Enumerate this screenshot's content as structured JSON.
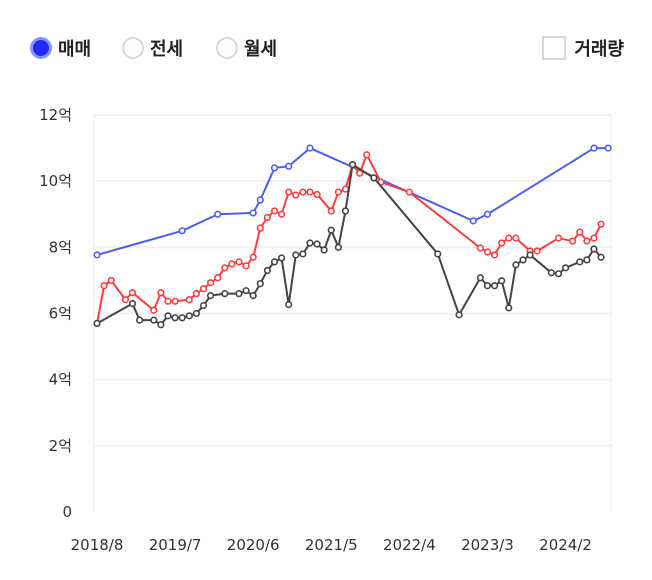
{
  "controls": {
    "radios": [
      {
        "label": "매매",
        "selected": true
      },
      {
        "label": "전세",
        "selected": false
      },
      {
        "label": "월세",
        "selected": false
      }
    ],
    "volume_checkbox": {
      "label": "거래량",
      "checked": false
    }
  },
  "chart_data": {
    "type": "line",
    "x_unit": "months since 2018/8",
    "xlim": [
      0,
      72.4
    ],
    "ylim": [
      0,
      12
    ],
    "y_ticks": [
      0,
      2,
      4,
      6,
      8,
      10,
      12
    ],
    "y_tick_labels": [
      "0",
      "2억",
      "4억",
      "6억",
      "8억",
      "10억",
      "12억"
    ],
    "x_ticks": [
      0,
      11,
      22,
      33,
      44,
      55,
      66
    ],
    "x_tick_labels": [
      "2018/8",
      "2019/7",
      "2020/6",
      "2021/5",
      "2022/4",
      "2023/3",
      "2024/2"
    ],
    "grid": true,
    "series": [
      {
        "name": "blue",
        "color": "#4a5cff",
        "points": [
          [
            0,
            7.77
          ],
          [
            12,
            8.5
          ],
          [
            17,
            9.0
          ],
          [
            22,
            9.04
          ],
          [
            23,
            9.43
          ],
          [
            25,
            10.4
          ],
          [
            27,
            10.45
          ],
          [
            30,
            11.0
          ],
          [
            53,
            8.8
          ],
          [
            55,
            9.0
          ],
          [
            70,
            11.0
          ],
          [
            72,
            11.0
          ]
        ]
      },
      {
        "name": "red",
        "color": "#ff3b3b",
        "points": [
          [
            0,
            5.7
          ],
          [
            1,
            6.84
          ],
          [
            2,
            7.0
          ],
          [
            4,
            6.42
          ],
          [
            5,
            6.63
          ],
          [
            8,
            6.1
          ],
          [
            9,
            6.63
          ],
          [
            10,
            6.37
          ],
          [
            11,
            6.37
          ],
          [
            13,
            6.42
          ],
          [
            14,
            6.6
          ],
          [
            15,
            6.75
          ],
          [
            16,
            6.93
          ],
          [
            17,
            7.08
          ],
          [
            18,
            7.38
          ],
          [
            19,
            7.5
          ],
          [
            20,
            7.56
          ],
          [
            21,
            7.44
          ],
          [
            22,
            7.7
          ],
          [
            23,
            8.58
          ],
          [
            24,
            8.9
          ],
          [
            25,
            9.1
          ],
          [
            26,
            9.0
          ],
          [
            27,
            9.67
          ],
          [
            28,
            9.58
          ],
          [
            29,
            9.67
          ],
          [
            30,
            9.67
          ],
          [
            31,
            9.6
          ],
          [
            33,
            9.1
          ],
          [
            34,
            9.67
          ],
          [
            35,
            9.76
          ],
          [
            36,
            10.5
          ],
          [
            37,
            10.24
          ],
          [
            38,
            10.8
          ],
          [
            40,
            9.97
          ],
          [
            44,
            9.67
          ],
          [
            54,
            7.98
          ],
          [
            55,
            7.86
          ],
          [
            56,
            7.77
          ],
          [
            57,
            8.13
          ],
          [
            58,
            8.28
          ],
          [
            59,
            8.28
          ],
          [
            61,
            7.89
          ],
          [
            62,
            7.89
          ],
          [
            65,
            8.28
          ],
          [
            67,
            8.19
          ],
          [
            68,
            8.46
          ],
          [
            69,
            8.19
          ],
          [
            70,
            8.28
          ],
          [
            71,
            8.7
          ]
        ]
      },
      {
        "name": "black",
        "color": "#444444",
        "points": [
          [
            0,
            5.7
          ],
          [
            5,
            6.3
          ],
          [
            6,
            5.8
          ],
          [
            8,
            5.8
          ],
          [
            9,
            5.66
          ],
          [
            10,
            5.93
          ],
          [
            11,
            5.87
          ],
          [
            12,
            5.87
          ],
          [
            13,
            5.93
          ],
          [
            14,
            6.0
          ],
          [
            15,
            6.24
          ],
          [
            16,
            6.54
          ],
          [
            18,
            6.6
          ],
          [
            20,
            6.6
          ],
          [
            21,
            6.69
          ],
          [
            22,
            6.54
          ],
          [
            23,
            6.9
          ],
          [
            24,
            7.3
          ],
          [
            25,
            7.56
          ],
          [
            26,
            7.68
          ],
          [
            27,
            6.27
          ],
          [
            28,
            7.77
          ],
          [
            29,
            7.8
          ],
          [
            30,
            8.13
          ],
          [
            31,
            8.1
          ],
          [
            32,
            7.92
          ],
          [
            33,
            8.52
          ],
          [
            34,
            8.0
          ],
          [
            35,
            9.1
          ],
          [
            36,
            10.5
          ],
          [
            39,
            10.1
          ],
          [
            48,
            7.8
          ],
          [
            51,
            5.96
          ],
          [
            54,
            7.08
          ],
          [
            55,
            6.84
          ],
          [
            56,
            6.84
          ],
          [
            57,
            6.99
          ],
          [
            58,
            6.17
          ],
          [
            59,
            7.47
          ],
          [
            60,
            7.62
          ],
          [
            61,
            7.77
          ],
          [
            64,
            7.23
          ],
          [
            65,
            7.2
          ],
          [
            66,
            7.38
          ],
          [
            68,
            7.56
          ],
          [
            69,
            7.62
          ],
          [
            70,
            7.95
          ],
          [
            71,
            7.7
          ]
        ]
      }
    ]
  }
}
